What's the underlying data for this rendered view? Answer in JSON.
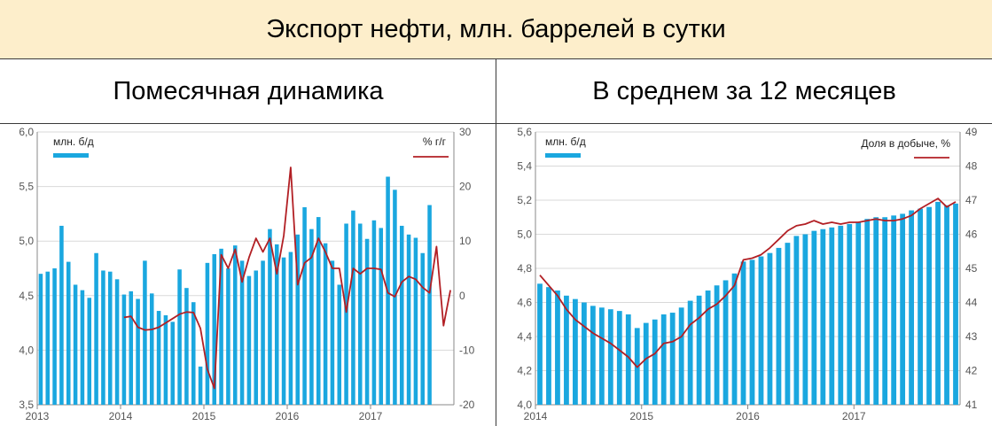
{
  "header": {
    "title": "Экспорт нефти, млн. баррелей в сутки"
  },
  "panels": {
    "left_title": "Помесячная динамика",
    "right_title": "В среднем за 12 месяцев"
  },
  "colors": {
    "bar": "#1aa7df",
    "line": "#b21f24",
    "grid": "#d9d9d9",
    "axis": "#888888"
  },
  "chart_data": [
    {
      "type": "bar",
      "title": "Помесячная динамика",
      "x_tick_labels": [
        "2013",
        "2014",
        "2015",
        "2016",
        "2017"
      ],
      "ylim_left": [
        3.5,
        6.0
      ],
      "ylim_right": [
        -20,
        30
      ],
      "y_ticks_left": [
        "3,5",
        "4,0",
        "4,5",
        "5,0",
        "5,5",
        "6,0"
      ],
      "y_ticks_right": [
        "-20",
        "-10",
        "0",
        "10",
        "20",
        "30"
      ],
      "grid": true,
      "legend": {
        "placement": "top",
        "left_series_label": "млн. б/д",
        "right_series_label": "% г/г"
      },
      "series": [
        {
          "name": "млн. б/д",
          "type": "bar",
          "axis": "left",
          "x_start": "2013-01",
          "values": [
            4.7,
            4.72,
            4.75,
            5.14,
            4.81,
            4.6,
            4.55,
            4.48,
            4.89,
            4.73,
            4.72,
            4.65,
            4.51,
            4.54,
            4.47,
            4.82,
            4.52,
            4.36,
            4.32,
            4.26,
            4.74,
            4.57,
            4.44,
            3.85,
            4.8,
            4.88,
            4.93,
            4.75,
            4.96,
            4.82,
            4.68,
            4.73,
            4.82,
            5.11,
            4.97,
            4.85,
            4.9,
            5.06,
            5.31,
            5.11,
            5.22,
            4.98,
            4.82,
            4.6,
            5.16,
            5.28,
            5.16,
            5.02,
            5.19,
            5.12,
            5.59,
            5.47,
            5.14,
            5.06,
            5.03,
            4.89,
            5.33
          ]
        },
        {
          "name": "% г/г",
          "type": "line",
          "axis": "right",
          "x_start": "2014-01",
          "values": [
            -4.0,
            -3.8,
            -5.8,
            -6.3,
            -6.2,
            -5.8,
            -5.0,
            -4.2,
            -3.4,
            -3.0,
            -3.1,
            -6.0,
            -13.5,
            -17.0,
            7.5,
            5.0,
            8.5,
            2.5,
            7.0,
            10.5,
            8.0,
            10.5,
            4.0,
            11.0,
            23.5,
            2.0,
            6.0,
            7.0,
            10.5,
            8.0,
            5.0,
            5.0,
            -3.0,
            5.0,
            4.0,
            5.0,
            5.0,
            4.8,
            0.5,
            -0.2,
            2.5,
            3.5,
            3.0,
            1.5,
            0.5,
            9.0,
            -5.5,
            1.0
          ]
        }
      ]
    },
    {
      "type": "bar",
      "title": "В среднем за 12 месяцев",
      "x_tick_labels": [
        "2014",
        "2015",
        "2016",
        "2017"
      ],
      "ylim_left": [
        4.0,
        5.6
      ],
      "ylim_right": [
        41,
        49
      ],
      "y_ticks_left": [
        "4,0",
        "4,2",
        "4,4",
        "4,6",
        "4,8",
        "5,0",
        "5,2",
        "5,4",
        "5,6"
      ],
      "y_ticks_right": [
        "41",
        "42",
        "43",
        "44",
        "45",
        "46",
        "47",
        "48",
        "49"
      ],
      "grid": true,
      "legend": {
        "placement": "top",
        "left_series_label": "млн. б/д",
        "right_series_label": "Доля в добыче, %"
      },
      "series": [
        {
          "name": "млн. б/д",
          "type": "bar",
          "axis": "left",
          "x_start": "2014-01",
          "values": [
            4.71,
            4.69,
            4.67,
            4.64,
            4.62,
            4.6,
            4.58,
            4.57,
            4.56,
            4.55,
            4.53,
            4.45,
            4.48,
            4.5,
            4.53,
            4.54,
            4.57,
            4.61,
            4.64,
            4.67,
            4.7,
            4.73,
            4.77,
            4.84,
            4.85,
            4.87,
            4.89,
            4.92,
            4.95,
            4.99,
            5.0,
            5.02,
            5.03,
            5.04,
            5.05,
            5.06,
            5.07,
            5.09,
            5.1,
            5.1,
            5.11,
            5.12,
            5.14,
            5.15,
            5.16,
            5.19,
            5.17,
            5.18
          ]
        },
        {
          "name": "Доля в добыче, %",
          "type": "line",
          "axis": "right",
          "x_start": "2014-01",
          "values": [
            44.8,
            44.5,
            44.2,
            43.8,
            43.5,
            43.3,
            43.1,
            42.95,
            42.8,
            42.6,
            42.4,
            42.1,
            42.35,
            42.5,
            42.8,
            42.85,
            43.0,
            43.35,
            43.55,
            43.8,
            43.95,
            44.2,
            44.5,
            45.25,
            45.3,
            45.4,
            45.6,
            45.85,
            46.1,
            46.25,
            46.3,
            46.4,
            46.3,
            46.35,
            46.3,
            46.35,
            46.35,
            46.4,
            46.45,
            46.4,
            46.4,
            46.45,
            46.55,
            46.75,
            46.9,
            47.05,
            46.8,
            46.95
          ]
        }
      ]
    }
  ]
}
